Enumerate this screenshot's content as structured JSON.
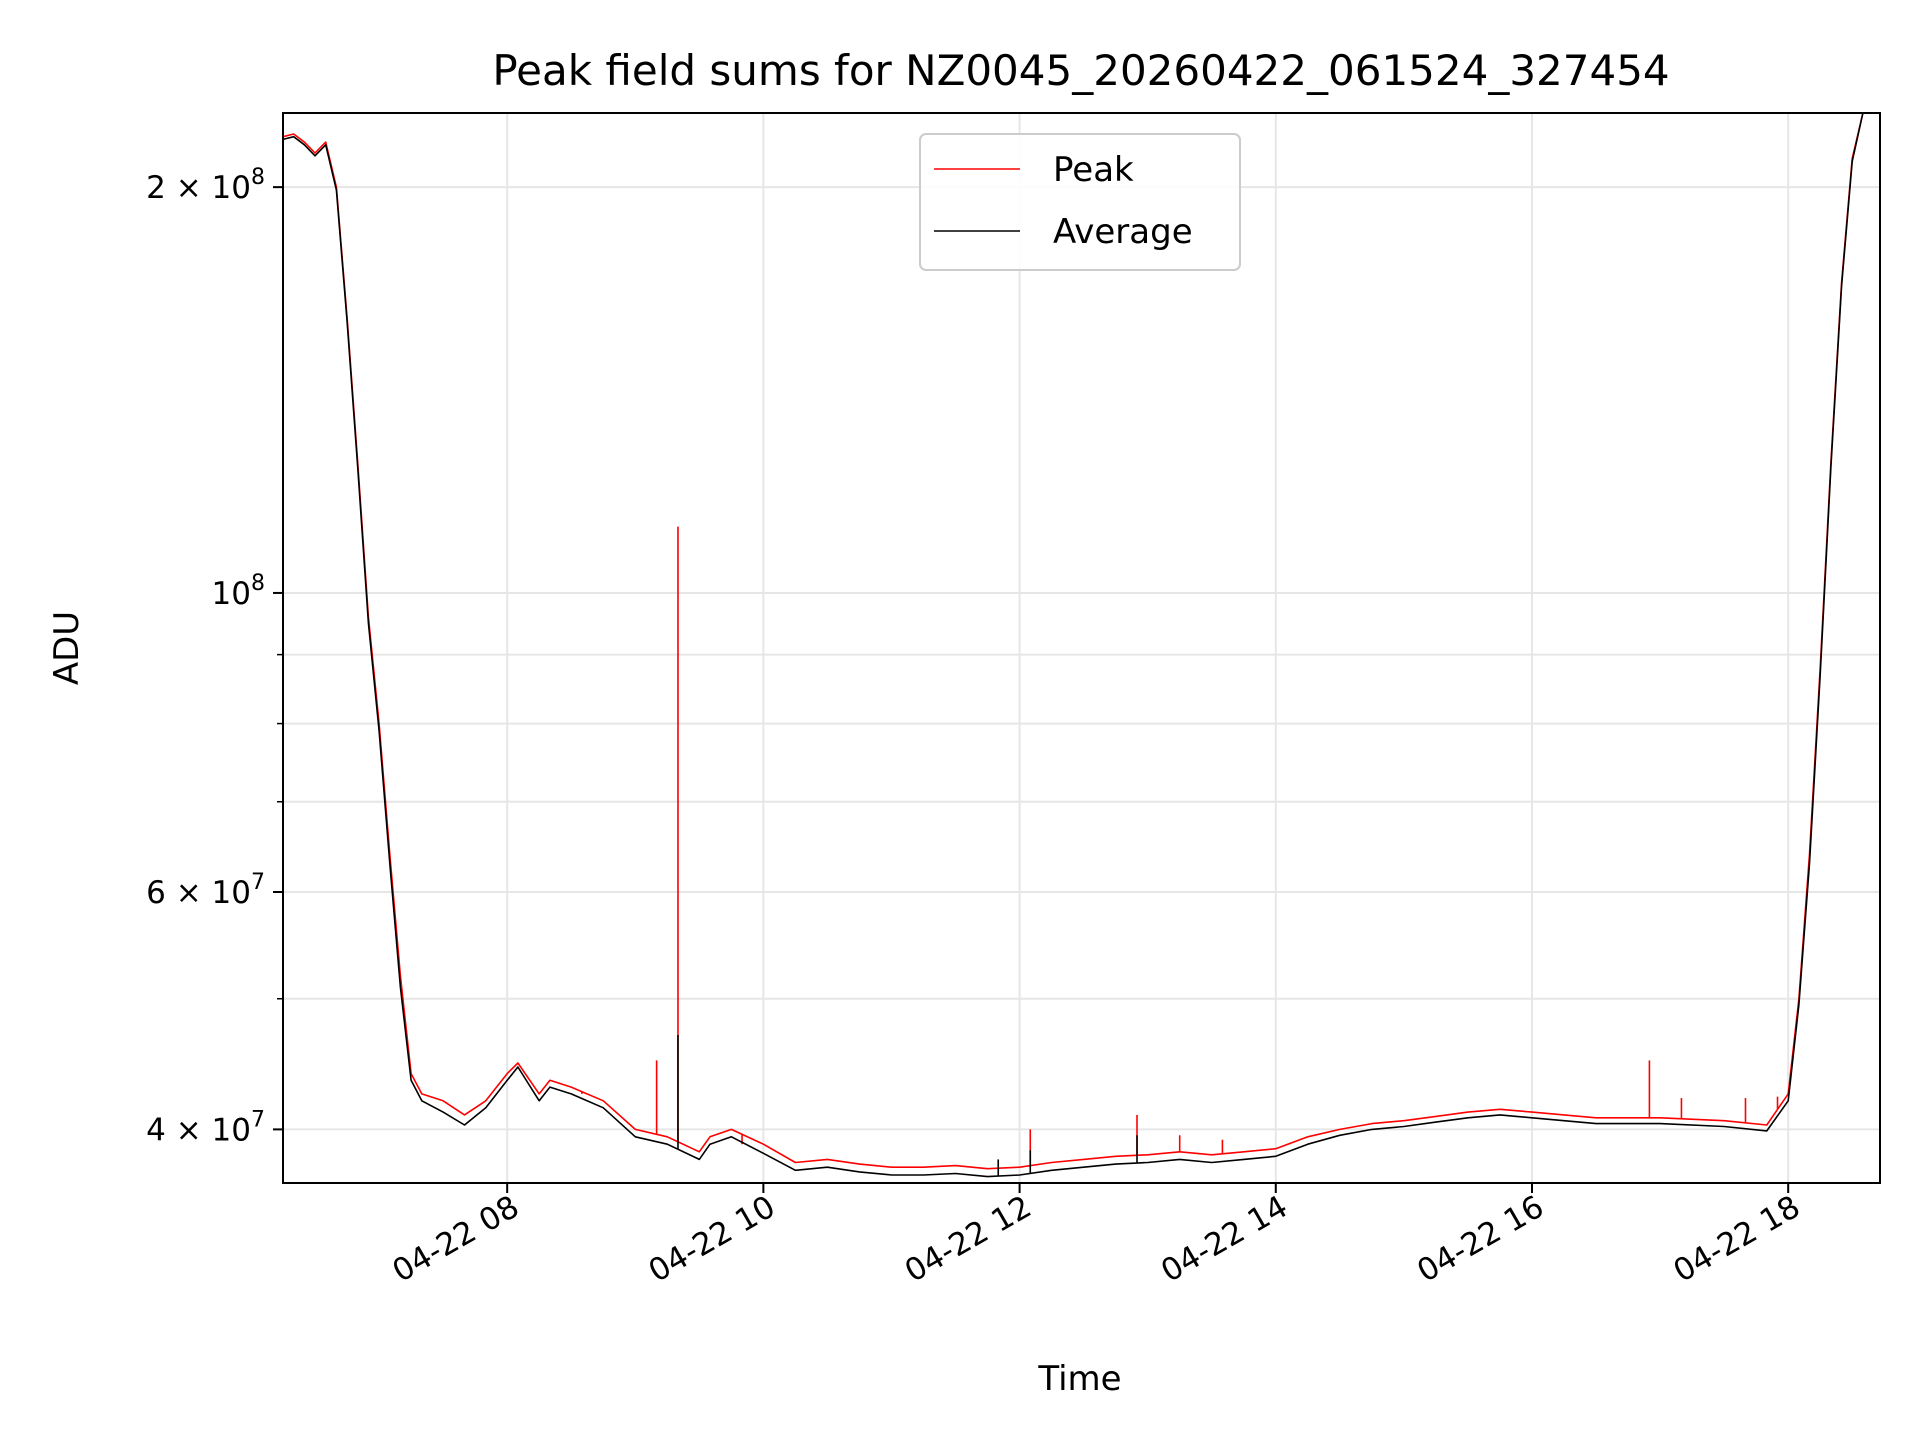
{
  "chart_data": {
    "type": "line",
    "title": "Peak field sums for NZ0045_20260422_061524_327454",
    "xlabel": "Time",
    "ylabel": "ADU",
    "yscale": "log",
    "xlim": [
      "04-22 06:15",
      "04-22 18:43"
    ],
    "ylim": [
      36500000,
      227000000
    ],
    "grid": true,
    "legend_position": "top-center",
    "x_ticks": [
      {
        "value": "04-22 08:00",
        "label": "04-22 08"
      },
      {
        "value": "04-22 10:00",
        "label": "04-22 10"
      },
      {
        "value": "04-22 12:00",
        "label": "04-22 12"
      },
      {
        "value": "04-22 14:00",
        "label": "04-22 14"
      },
      {
        "value": "04-22 16:00",
        "label": "04-22 16"
      },
      {
        "value": "04-22 18:00",
        "label": "04-22 18"
      }
    ],
    "y_ticks": [
      {
        "value": 200000000,
        "base": "2 × 10",
        "exp": "8"
      },
      {
        "value": 100000000,
        "base": "10",
        "exp": "8"
      },
      {
        "value": 60000000,
        "base": "6 × 10",
        "exp": "7"
      },
      {
        "value": 40000000,
        "base": "4 × 10",
        "exp": "7"
      }
    ],
    "y_minor_ticks": [
      30000000,
      50000000,
      70000000,
      80000000,
      90000000
    ],
    "series": [
      {
        "name": "Peak",
        "color": "#ff0000",
        "points": [
          [
            "04-22 06:15",
            218000000
          ],
          [
            "04-22 06:20",
            219000000
          ],
          [
            "04-22 06:25",
            216000000
          ],
          [
            "04-22 06:30",
            212000000
          ],
          [
            "04-22 06:35",
            216000000
          ],
          [
            "04-22 06:40",
            200000000
          ],
          [
            "04-22 06:45",
            160000000
          ],
          [
            "04-22 06:50",
            125000000
          ],
          [
            "04-22 06:55",
            96000000
          ],
          [
            "04-22 07:00",
            80000000
          ],
          [
            "04-22 07:05",
            64000000
          ],
          [
            "04-22 07:10",
            52000000
          ],
          [
            "04-22 07:15",
            44000000
          ],
          [
            "04-22 07:20",
            42500000
          ],
          [
            "04-22 07:30",
            42000000
          ],
          [
            "04-22 07:40",
            41000000
          ],
          [
            "04-22 07:50",
            42000000
          ],
          [
            "04-22 08:00",
            44000000
          ],
          [
            "04-22 08:05",
            44800000
          ],
          [
            "04-22 08:15",
            42500000
          ],
          [
            "04-22 08:20",
            43500000
          ],
          [
            "04-22 08:30",
            43000000
          ],
          [
            "04-22 08:45",
            42000000
          ],
          [
            "04-22 09:00",
            40000000
          ],
          [
            "04-22 09:15",
            39500000
          ],
          [
            "04-22 09:30",
            38500000
          ],
          [
            "04-22 09:35",
            39500000
          ],
          [
            "04-22 09:45",
            40000000
          ],
          [
            "04-22 10:00",
            39000000
          ],
          [
            "04-22 10:15",
            37800000
          ],
          [
            "04-22 10:30",
            38000000
          ],
          [
            "04-22 10:45",
            37700000
          ],
          [
            "04-22 11:00",
            37500000
          ],
          [
            "04-22 11:15",
            37500000
          ],
          [
            "04-22 11:30",
            37600000
          ],
          [
            "04-22 11:45",
            37400000
          ],
          [
            "04-22 12:00",
            37500000
          ],
          [
            "04-22 12:15",
            37800000
          ],
          [
            "04-22 12:30",
            38000000
          ],
          [
            "04-22 12:45",
            38200000
          ],
          [
            "04-22 13:00",
            38300000
          ],
          [
            "04-22 13:15",
            38500000
          ],
          [
            "04-22 13:30",
            38300000
          ],
          [
            "04-22 13:45",
            38500000
          ],
          [
            "04-22 14:00",
            38700000
          ],
          [
            "04-22 14:15",
            39500000
          ],
          [
            "04-22 14:30",
            40000000
          ],
          [
            "04-22 14:45",
            40400000
          ],
          [
            "04-22 15:00",
            40600000
          ],
          [
            "04-22 15:15",
            40900000
          ],
          [
            "04-22 15:30",
            41200000
          ],
          [
            "04-22 15:45",
            41400000
          ],
          [
            "04-22 16:00",
            41200000
          ],
          [
            "04-22 16:30",
            40800000
          ],
          [
            "04-22 17:00",
            40800000
          ],
          [
            "04-22 17:30",
            40600000
          ],
          [
            "04-22 17:50",
            40300000
          ],
          [
            "04-22 18:00",
            42500000
          ],
          [
            "04-22 18:05",
            50000000
          ],
          [
            "04-22 18:10",
            64000000
          ],
          [
            "04-22 18:15",
            88000000
          ],
          [
            "04-22 18:20",
            125000000
          ],
          [
            "04-22 18:25",
            170000000
          ],
          [
            "04-22 18:30",
            210000000
          ],
          [
            "04-22 18:35",
            227000000
          ],
          [
            "04-22 18:43",
            227000000
          ]
        ],
        "spikes": [
          [
            "04-22 08:35",
            42500000
          ],
          [
            "04-22 09:10",
            45000000
          ],
          [
            "04-22 09:20",
            112000000
          ],
          [
            "04-22 09:50",
            39000000
          ],
          [
            "04-22 12:05",
            40000000
          ],
          [
            "04-22 12:55",
            41000000
          ],
          [
            "04-22 13:15",
            39600000
          ],
          [
            "04-22 13:35",
            39300000
          ],
          [
            "04-22 16:55",
            45000000
          ],
          [
            "04-22 17:10",
            42200000
          ],
          [
            "04-22 17:40",
            42200000
          ],
          [
            "04-22 17:55",
            42300000
          ]
        ]
      },
      {
        "name": "Average",
        "color": "#000000",
        "points": [
          [
            "04-22 06:15",
            217000000
          ],
          [
            "04-22 06:20",
            218000000
          ],
          [
            "04-22 06:25",
            215000000
          ],
          [
            "04-22 06:30",
            211000000
          ],
          [
            "04-22 06:35",
            215000000
          ],
          [
            "04-22 06:40",
            199000000
          ],
          [
            "04-22 06:45",
            159000000
          ],
          [
            "04-22 06:50",
            124000000
          ],
          [
            "04-22 06:55",
            95000000
          ],
          [
            "04-22 07:00",
            79000000
          ],
          [
            "04-22 07:05",
            63000000
          ],
          [
            "04-22 07:10",
            51000000
          ],
          [
            "04-22 07:15",
            43500000
          ],
          [
            "04-22 07:20",
            42000000
          ],
          [
            "04-22 07:30",
            41200000
          ],
          [
            "04-22 07:40",
            40300000
          ],
          [
            "04-22 07:50",
            41500000
          ],
          [
            "04-22 08:00",
            43500000
          ],
          [
            "04-22 08:05",
            44500000
          ],
          [
            "04-22 08:15",
            42000000
          ],
          [
            "04-22 08:20",
            43000000
          ],
          [
            "04-22 08:30",
            42500000
          ],
          [
            "04-22 08:45",
            41500000
          ],
          [
            "04-22 09:00",
            39500000
          ],
          [
            "04-22 09:15",
            39000000
          ],
          [
            "04-22 09:30",
            38000000
          ],
          [
            "04-22 09:35",
            39000000
          ],
          [
            "04-22 09:45",
            39500000
          ],
          [
            "04-22 10:00",
            38400000
          ],
          [
            "04-22 10:15",
            37300000
          ],
          [
            "04-22 10:30",
            37500000
          ],
          [
            "04-22 10:45",
            37200000
          ],
          [
            "04-22 11:00",
            37000000
          ],
          [
            "04-22 11:15",
            37000000
          ],
          [
            "04-22 11:30",
            37100000
          ],
          [
            "04-22 11:45",
            36900000
          ],
          [
            "04-22 12:00",
            37000000
          ],
          [
            "04-22 12:15",
            37300000
          ],
          [
            "04-22 12:30",
            37500000
          ],
          [
            "04-22 12:45",
            37700000
          ],
          [
            "04-22 13:00",
            37800000
          ],
          [
            "04-22 13:15",
            38000000
          ],
          [
            "04-22 13:30",
            37800000
          ],
          [
            "04-22 13:45",
            38000000
          ],
          [
            "04-22 14:00",
            38200000
          ],
          [
            "04-22 14:15",
            39000000
          ],
          [
            "04-22 14:30",
            39600000
          ],
          [
            "04-22 14:45",
            40000000
          ],
          [
            "04-22 15:00",
            40200000
          ],
          [
            "04-22 15:15",
            40500000
          ],
          [
            "04-22 15:30",
            40800000
          ],
          [
            "04-22 15:45",
            41000000
          ],
          [
            "04-22 16:00",
            40800000
          ],
          [
            "04-22 16:30",
            40400000
          ],
          [
            "04-22 17:00",
            40400000
          ],
          [
            "04-22 17:30",
            40200000
          ],
          [
            "04-22 17:50",
            39900000
          ],
          [
            "04-22 18:00",
            42000000
          ],
          [
            "04-22 18:05",
            49500000
          ],
          [
            "04-22 18:10",
            63000000
          ],
          [
            "04-22 18:15",
            87000000
          ],
          [
            "04-22 18:20",
            124000000
          ],
          [
            "04-22 18:25",
            169000000
          ],
          [
            "04-22 18:30",
            209000000
          ],
          [
            "04-22 18:35",
            227000000
          ],
          [
            "04-22 18:43",
            227000000
          ]
        ],
        "spikes": [
          [
            "04-22 09:20",
            47000000
          ],
          [
            "04-22 11:50",
            38000000
          ],
          [
            "04-22 12:05",
            38600000
          ],
          [
            "04-22 12:55",
            39600000
          ]
        ]
      }
    ]
  }
}
